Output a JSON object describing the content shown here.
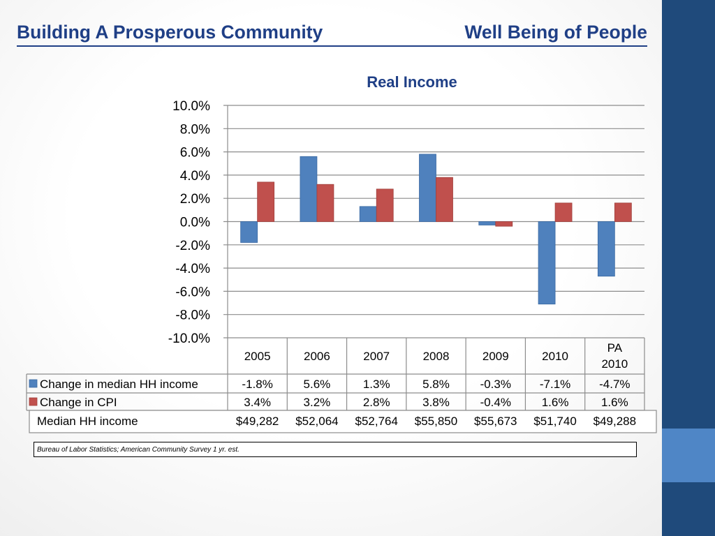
{
  "slide": {
    "title_left": "Building A Prosperous Community",
    "title_right": "Well Being of People",
    "source": "Bureau of Labor Statistics; American Community Survey 1 yr. est."
  },
  "colors": {
    "series_income": "#4f81bd",
    "series_cpi": "#c0504d",
    "title": "#1f3f86",
    "sidebar": "#1f4a7b",
    "sidebar_accent": "#4f86c6"
  },
  "chart_data": {
    "type": "bar",
    "title": "Real Income",
    "categories": [
      "2005",
      "2006",
      "2007",
      "2008",
      "2009",
      "2010",
      "PA 2010"
    ],
    "series": [
      {
        "name": "Change in median HH income",
        "values": [
          -1.8,
          5.6,
          1.3,
          5.8,
          -0.3,
          -7.1,
          -4.7
        ],
        "labels": [
          "-1.8%",
          "5.6%",
          "1.3%",
          "5.8%",
          "-0.3%",
          "-7.1%",
          "-4.7%"
        ]
      },
      {
        "name": "Change in CPI",
        "values": [
          3.4,
          3.2,
          2.8,
          3.8,
          -0.4,
          1.6,
          1.6
        ],
        "labels": [
          "3.4%",
          "3.2%",
          "2.8%",
          "3.8%",
          "-0.4%",
          "1.6%",
          "1.6%"
        ]
      }
    ],
    "ylim": [
      -10,
      10
    ],
    "yticks": [
      "10.0%",
      "8.0%",
      "6.0%",
      "4.0%",
      "2.0%",
      "0.0%",
      "-2.0%",
      "-4.0%",
      "-6.0%",
      "-8.0%",
      "-10.0%"
    ],
    "grid": true,
    "legend": "data table",
    "extra_row": {
      "label": "Median HH income",
      "values": [
        "$49,282",
        "$52,064",
        "$52,764",
        "$55,850",
        "$55,673",
        "$51,740",
        "$49,288"
      ]
    }
  }
}
